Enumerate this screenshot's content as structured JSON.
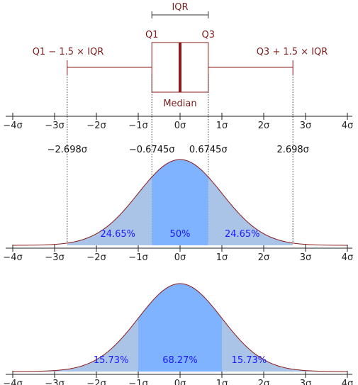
{
  "colors": {
    "box": "#8b1a1a",
    "curve": "#8b1a1a",
    "fill_center": "#7fb2ff",
    "fill_side": "#aac4e8",
    "text_pct": "#1a1aff",
    "axis": "#222222"
  },
  "boxplot": {
    "iqr_label": "IQR",
    "q1_label": "Q1",
    "q3_label": "Q3",
    "median_label": "Median",
    "lower_whisker_label": "Q1 − 1.5 × IQR",
    "upper_whisker_label": "Q3 + 1.5 × IQR",
    "q1": -0.6745,
    "q3": 0.6745,
    "median": 0,
    "whisker_low": -2.698,
    "whisker_high": 2.698
  },
  "quartile_values": [
    {
      "x": -2.698,
      "label": "−2.698σ"
    },
    {
      "x": -0.6745,
      "label": "−0.6745σ"
    },
    {
      "x": 0.6745,
      "label": "0.6745σ"
    },
    {
      "x": 2.698,
      "label": "2.698σ"
    }
  ],
  "axis_ticks": [
    {
      "x": -4,
      "label": "−4σ"
    },
    {
      "x": -3,
      "label": "−3σ"
    },
    {
      "x": -2,
      "label": "−2σ"
    },
    {
      "x": -1,
      "label": "−1σ"
    },
    {
      "x": 0,
      "label": "0σ"
    },
    {
      "x": 1,
      "label": "1σ"
    },
    {
      "x": 2,
      "label": "2σ"
    },
    {
      "x": 3,
      "label": "3σ"
    },
    {
      "x": 4,
      "label": "4σ"
    }
  ],
  "axis_range": [
    -4,
    4
  ],
  "density_iqr": {
    "regions": [
      {
        "from": -2.698,
        "to": -0.6745,
        "shade": "side",
        "label": "24.65%"
      },
      {
        "from": -0.6745,
        "to": 0.6745,
        "shade": "center",
        "label": "50%"
      },
      {
        "from": 0.6745,
        "to": 2.698,
        "shade": "side",
        "label": "24.65%"
      }
    ]
  },
  "density_sigma": {
    "regions": [
      {
        "from": -4,
        "to": -1,
        "shade": "side",
        "label": "15.73%"
      },
      {
        "from": -1,
        "to": 1,
        "shade": "center",
        "label": "68.27%"
      },
      {
        "from": 1,
        "to": 4,
        "shade": "side",
        "label": "15.73%"
      }
    ]
  }
}
